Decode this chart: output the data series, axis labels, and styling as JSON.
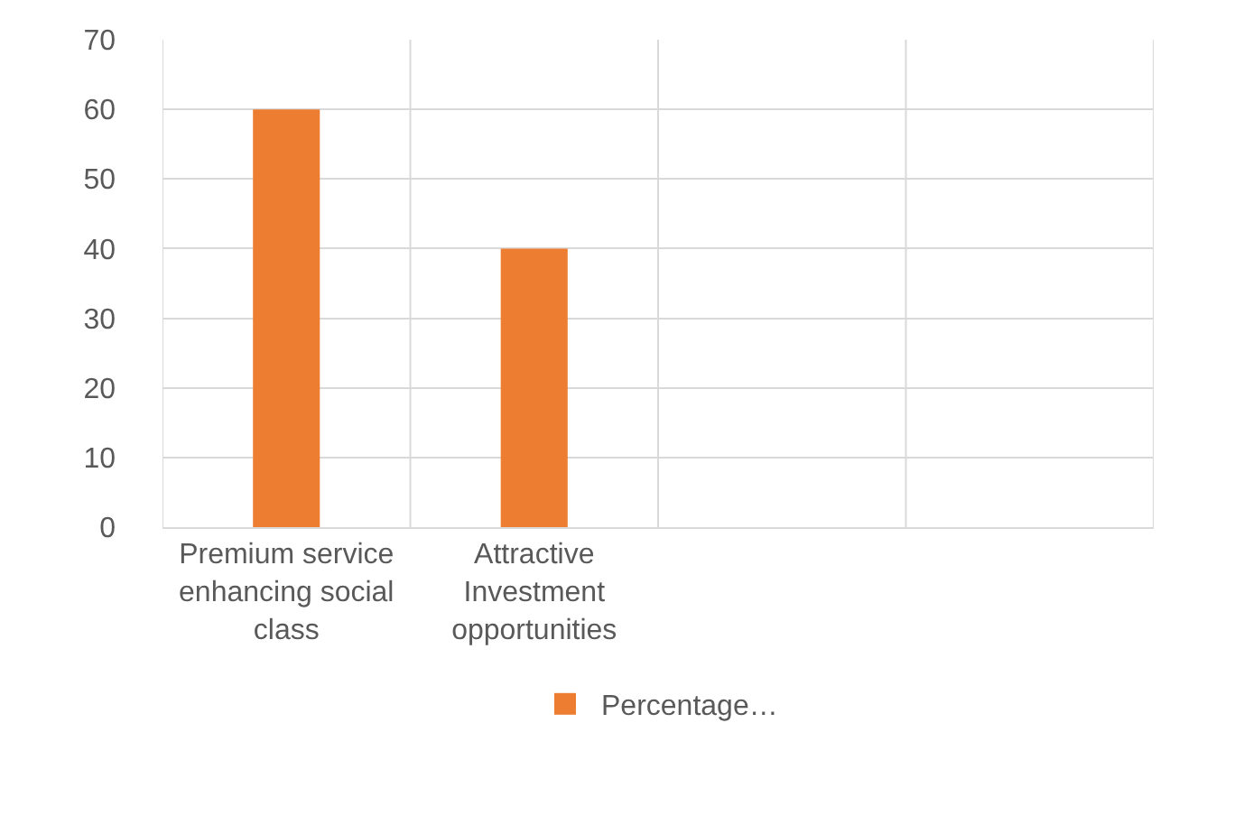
{
  "chart_data": {
    "type": "bar",
    "categories": [
      "Premium service enhancing social class",
      "Attractive Investment opportunities",
      null,
      null
    ],
    "series": [
      {
        "name": "Percentage…",
        "color": "#ed7d31",
        "values": [
          60,
          40,
          null,
          null
        ]
      }
    ],
    "ylim": [
      0,
      70
    ],
    "yticks": [
      0,
      10,
      20,
      30,
      40,
      50,
      60,
      70
    ],
    "grid": true,
    "legend": "bottom"
  }
}
